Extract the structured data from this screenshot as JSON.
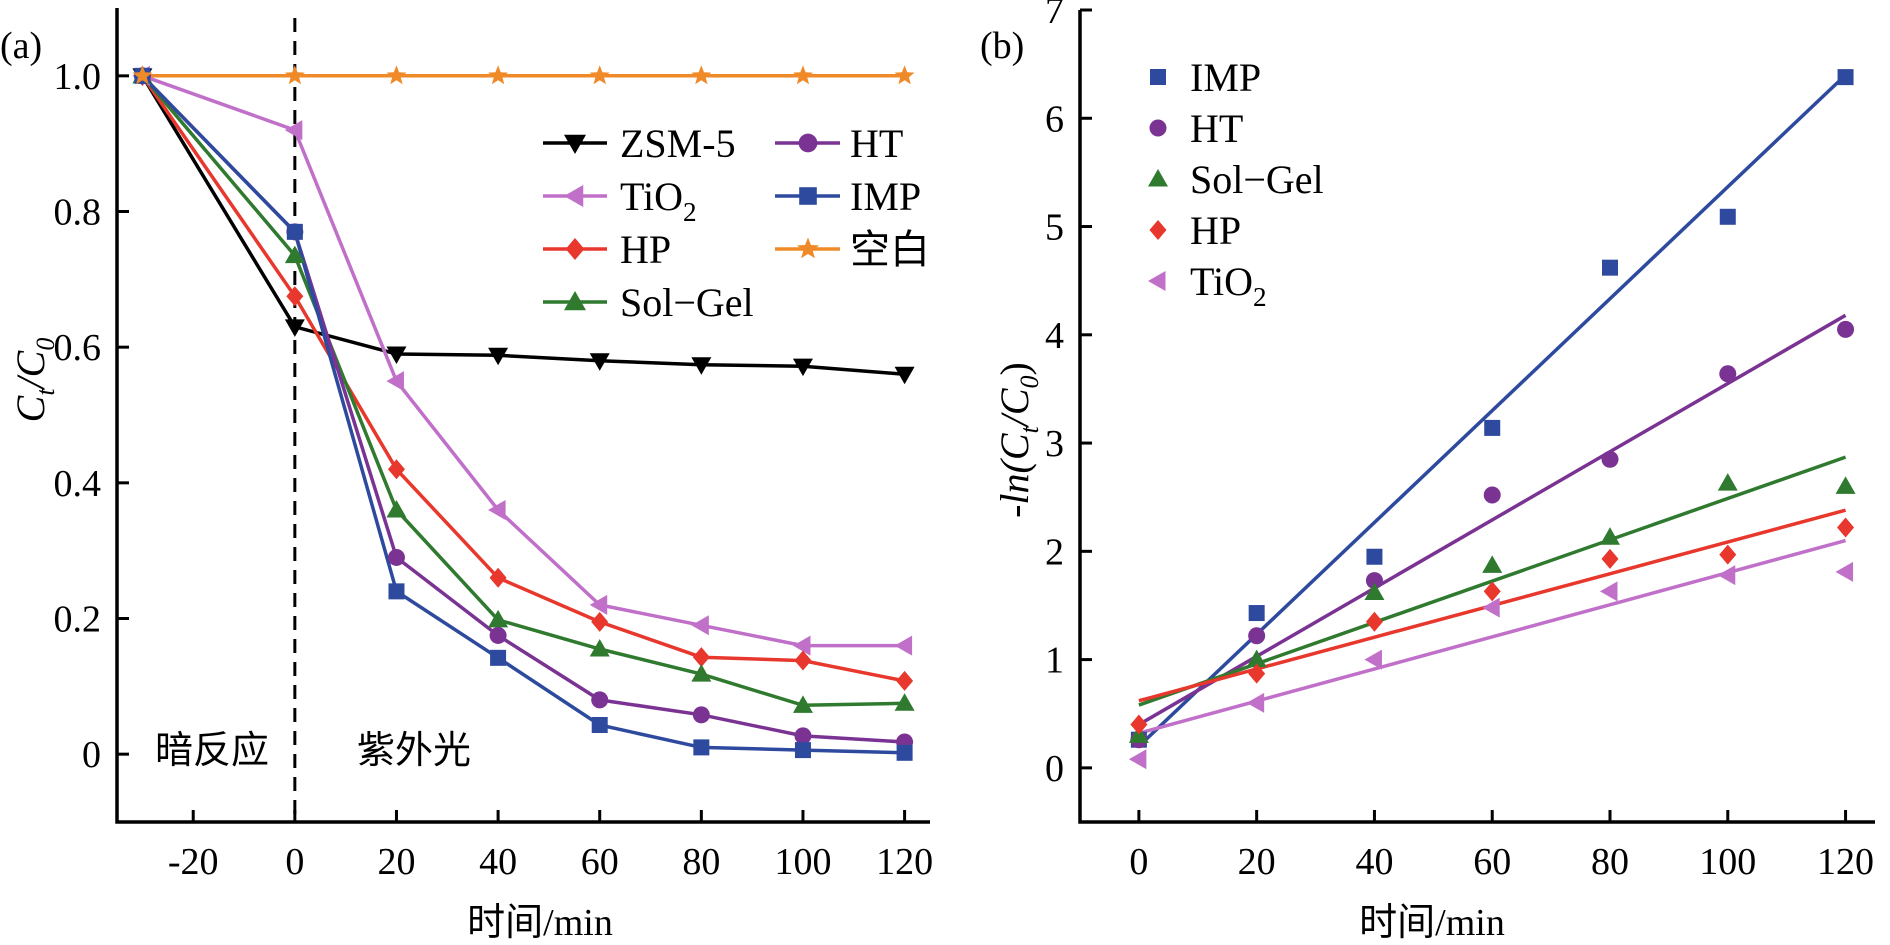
{
  "chart_data": [
    {
      "panel": "(a)",
      "type": "line",
      "ylabel_main": "C",
      "ylabel_sub1": "t",
      "ylabel_mid": "/C",
      "ylabel_sub2": "0",
      "xlabel": "时间/min",
      "xlim": [
        -35,
        125
      ],
      "ylim": [
        -0.1,
        1.1
      ],
      "xticks": [
        -20,
        0,
        20,
        40,
        60,
        80,
        100,
        120
      ],
      "xtick_labels": [
        "-20",
        "0",
        "20",
        "40",
        "60",
        "80",
        "100",
        "120"
      ],
      "yticks": [
        0,
        0.2,
        0.4,
        0.6,
        0.8,
        1.0
      ],
      "ytick_labels": [
        "0",
        "0.2",
        "0.4",
        "0.6",
        "0.8",
        "1.0"
      ],
      "vline_x": 0,
      "annotations": [
        {
          "text": "暗反应",
          "x": -20,
          "y": 0
        },
        {
          "text": "紫外光",
          "x": 20,
          "y": 0
        }
      ],
      "legend_position": "top-right",
      "x": [
        -30,
        0,
        20,
        40,
        60,
        80,
        100,
        120
      ],
      "series": [
        {
          "name": "ZSM-5",
          "marker": "triangle-down",
          "color": "#000000",
          "values": [
            1.0,
            0.63,
            0.59,
            0.588,
            0.58,
            0.574,
            0.572,
            0.56
          ]
        },
        {
          "name": "TiO",
          "name_sub": "2",
          "marker": "triangle-left",
          "color": "#c070c8",
          "values": [
            1.0,
            0.92,
            0.55,
            0.36,
            0.22,
            0.19,
            0.16,
            0.16
          ]
        },
        {
          "name": "HP",
          "marker": "diamond",
          "color": "#e8372c",
          "values": [
            1.0,
            0.675,
            0.42,
            0.26,
            0.195,
            0.143,
            0.138,
            0.108
          ]
        },
        {
          "name": "Sol−Gel",
          "marker": "triangle-up",
          "color": "#2f7a2f",
          "values": [
            1.0,
            0.735,
            0.36,
            0.198,
            0.155,
            0.118,
            0.072,
            0.075
          ]
        },
        {
          "name": "HT",
          "marker": "circle",
          "color": "#7b3393",
          "values": [
            1.0,
            0.77,
            0.29,
            0.175,
            0.08,
            0.058,
            0.027,
            0.018
          ]
        },
        {
          "name": "IMP",
          "marker": "square",
          "color": "#2e4a9e",
          "values": [
            1.0,
            0.77,
            0.24,
            0.142,
            0.043,
            0.01,
            0.006,
            0.002
          ]
        },
        {
          "name": "空白",
          "marker": "star",
          "color": "#f08a28",
          "values": [
            1.0,
            1.0,
            1.0,
            1.0,
            1.0,
            1.0,
            1.0,
            1.0
          ]
        }
      ]
    },
    {
      "panel": "(b)",
      "type": "scatter",
      "ylabel_main": "-ln(C",
      "ylabel_sub1": "t",
      "ylabel_mid": "/C",
      "ylabel_sub2": "0",
      "ylabel_end": ")",
      "xlabel": "时间/min",
      "xlim": [
        -10,
        125
      ],
      "ylim": [
        -0.5,
        7
      ],
      "xticks": [
        0,
        20,
        40,
        60,
        80,
        100,
        120
      ],
      "xtick_labels": [
        "0",
        "20",
        "40",
        "60",
        "80",
        "100",
        "120"
      ],
      "yticks": [
        0,
        1,
        2,
        3,
        4,
        5,
        6,
        7
      ],
      "ytick_labels": [
        "0",
        "1",
        "2",
        "3",
        "4",
        "5",
        "6",
        "7"
      ],
      "legend_position": "top-left",
      "x": [
        0,
        20,
        40,
        60,
        80,
        100,
        120
      ],
      "series": [
        {
          "name": "IMP",
          "marker": "square",
          "color": "#2e4a9e",
          "values": [
            0.26,
            1.43,
            1.95,
            3.14,
            4.62,
            5.09,
            6.38
          ],
          "fit": [
            0.2,
            6.4
          ]
        },
        {
          "name": "HT",
          "marker": "circle",
          "color": "#7b3393",
          "values": [
            0.26,
            1.22,
            1.73,
            2.52,
            2.85,
            3.64,
            4.05
          ],
          "fit": [
            0.4,
            4.18
          ]
        },
        {
          "name": "Sol−Gel",
          "marker": "triangle-up",
          "color": "#2f7a2f",
          "values": [
            0.3,
            1.0,
            1.62,
            1.87,
            2.13,
            2.63,
            2.6
          ],
          "fit": [
            0.58,
            2.87
          ]
        },
        {
          "name": "HP",
          "marker": "diamond",
          "color": "#e8372c",
          "values": [
            0.4,
            0.87,
            1.35,
            1.63,
            1.93,
            1.97,
            2.22
          ],
          "fit": [
            0.62,
            2.38
          ]
        },
        {
          "name": "TiO",
          "name_sub": "2",
          "marker": "triangle-left",
          "color": "#c070c8",
          "values": [
            0.08,
            0.6,
            1.0,
            1.48,
            1.63,
            1.78,
            1.81
          ],
          "fit": [
            0.32,
            2.1
          ]
        }
      ]
    }
  ]
}
